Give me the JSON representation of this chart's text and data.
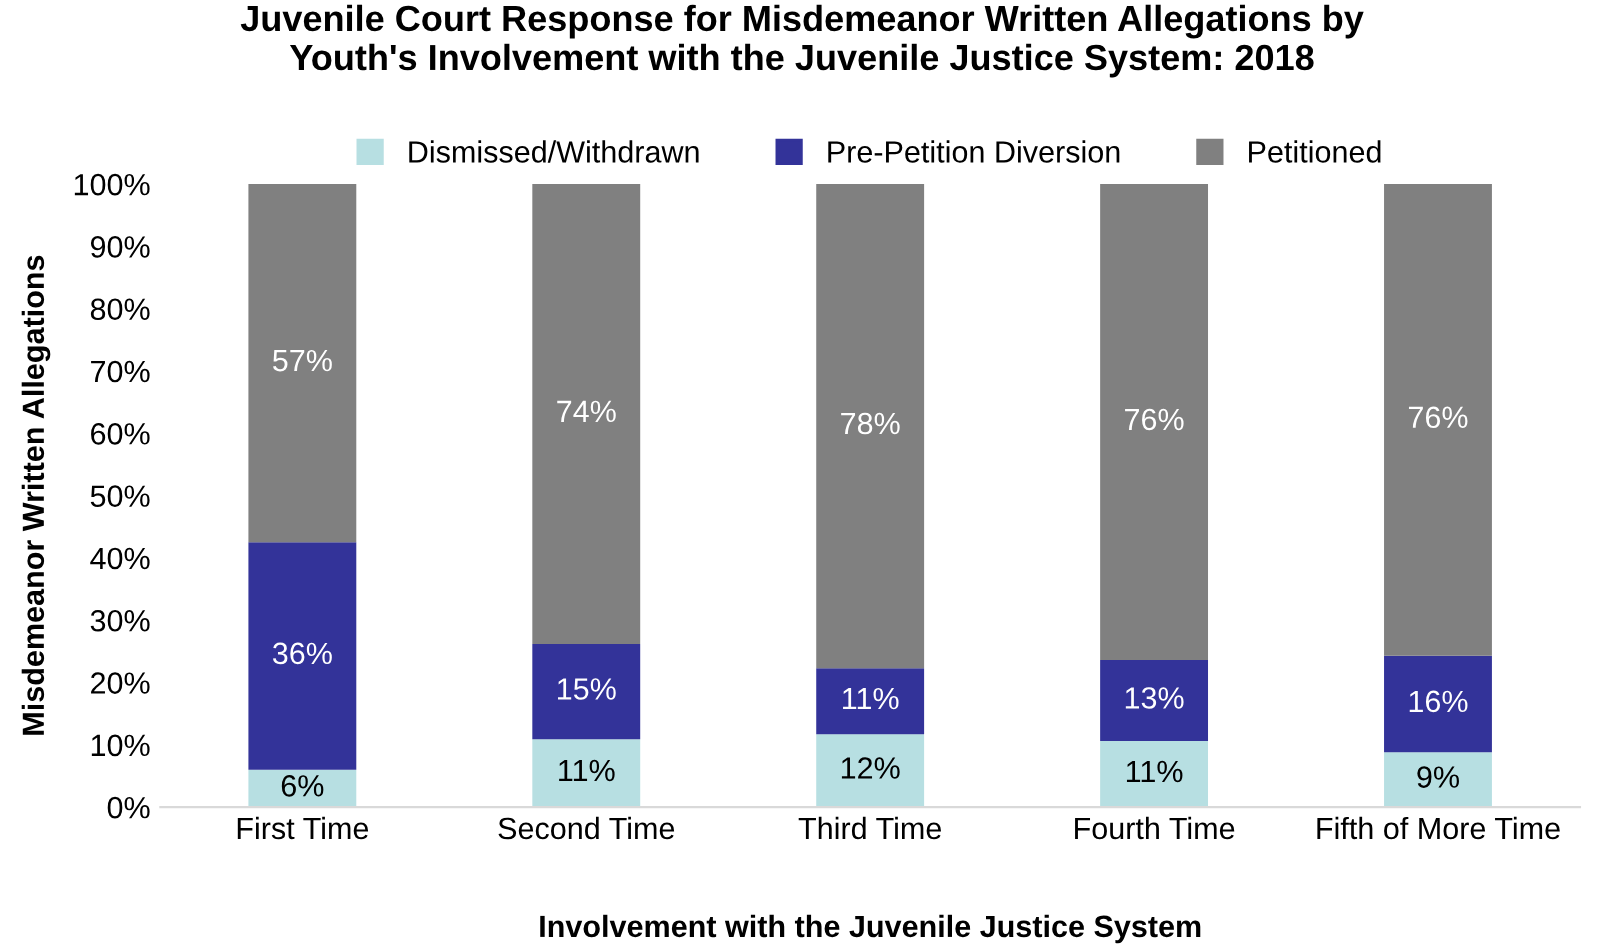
{
  "chart_data": {
    "type": "bar",
    "stacked": true,
    "title": "Juvenile Court Response for Misdemeanor Written Allegations by\nYouth's Involvement with the Juvenile Justice System: 2018",
    "xlabel": "Involvement with the Juvenile Justice System",
    "ylabel": "Misdemeanor Written Allegations",
    "categories": [
      "First Time",
      "Second Time",
      "Third Time",
      "Fourth Time",
      "Fifth of More Time"
    ],
    "series": [
      {
        "name": "Dismissed/Withdrawn",
        "color": "#b7dfe2",
        "values": [
          6.0,
          10.9,
          11.7,
          10.6,
          8.8
        ],
        "value_labels": [
          "6%",
          "11%",
          "12%",
          "11%",
          "9%"
        ]
      },
      {
        "name": "Pre-Petition Diversion",
        "color": "#333399",
        "values": [
          36.5,
          15.3,
          10.6,
          13.0,
          15.5
        ],
        "value_labels": [
          "36%",
          "15%",
          "11%",
          "13%",
          "16%"
        ]
      },
      {
        "name": "Petitioned",
        "color": "#808080",
        "values": [
          57.5,
          73.8,
          77.7,
          76.4,
          75.7
        ],
        "value_labels": [
          "57%",
          "74%",
          "78%",
          "76%",
          "76%"
        ]
      }
    ],
    "ylim": [
      0,
      100
    ],
    "yticks": [
      {
        "value": 0,
        "label": "0%"
      },
      {
        "value": 10,
        "label": "10%"
      },
      {
        "value": 20,
        "label": "20%"
      },
      {
        "value": 30,
        "label": "30%"
      },
      {
        "value": 40,
        "label": "40%"
      },
      {
        "value": 50,
        "label": "50%"
      },
      {
        "value": 60,
        "label": "60%"
      },
      {
        "value": 70,
        "label": "70%"
      },
      {
        "value": 80,
        "label": "80%"
      },
      {
        "value": 90,
        "label": "90%"
      },
      {
        "value": 100,
        "label": "100%"
      }
    ],
    "legend": "top",
    "grid": false
  }
}
